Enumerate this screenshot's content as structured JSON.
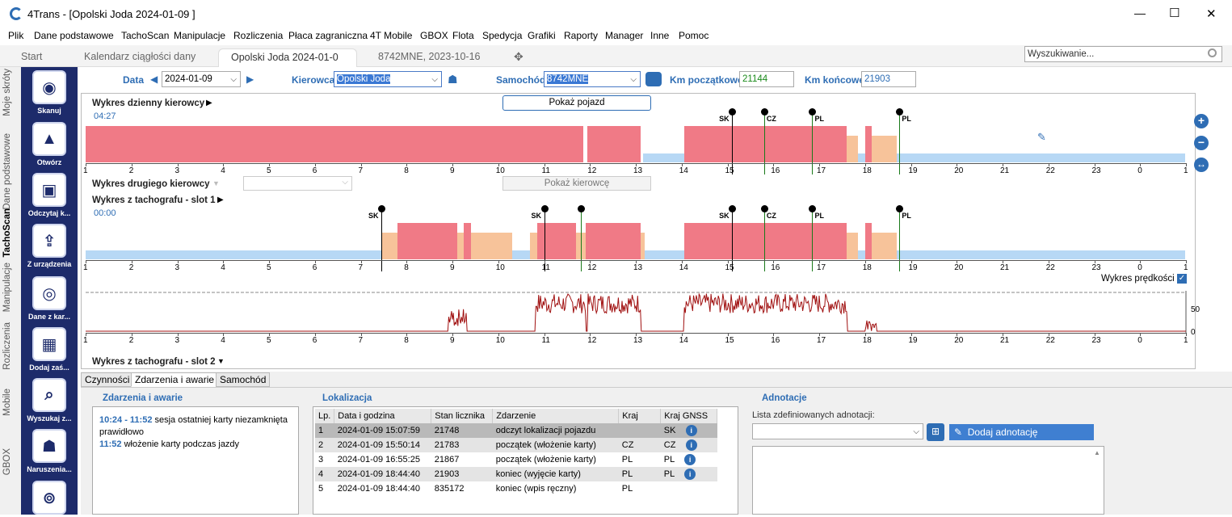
{
  "window": {
    "title": "4Trans - [Opolski Joda 2024-01-09 ]",
    "minimize": "—",
    "maximize": "☐",
    "close": "✕"
  },
  "menu": [
    "Plik",
    "Dane podstawowe",
    "TachoScan",
    "Manipulacje",
    "Rozliczenia",
    "Płaca zagraniczna",
    "4T Mobile",
    "GBOX",
    "Flota",
    "Spedycja",
    "Grafiki",
    "Raporty",
    "Manager",
    "Inne",
    "Pomoc"
  ],
  "tabs": [
    "Start",
    "Kalendarz ciągłości dany",
    "Opolski Joda 2024-01-0",
    "8742MNE, 2023-10-16"
  ],
  "search": {
    "placeholder": "Wyszukiwanie..."
  },
  "side_tabs": [
    "Moje skróty",
    "Dane podstawowe",
    "TachoScan",
    "Manipulacje",
    "Rozliczenia",
    "Mobile",
    "GBOX"
  ],
  "tools": [
    "Skanuj",
    "Otwórz",
    "Odczytaj k...",
    "Z urządzenia",
    "Dane z kar...",
    "Dodaj zaś...",
    "Wyszukaj z...",
    "Naruszenia..."
  ],
  "form": {
    "date_label": "Data",
    "date_value": "2024-01-09",
    "driver_label": "Kierowca",
    "driver_value": "Opolski Joda",
    "vehicle_label": "Samochód",
    "vehicle_value": "8742MNE",
    "km_start_label": "Km początkowe",
    "km_start_value": "21144",
    "km_end_label": "Km końcowe",
    "km_end_value": "21903"
  },
  "chart": {
    "daily_title": "Wykres dzienny kierowcy",
    "daily_time": "04:27",
    "show_vehicle": "Pokaż pojazd",
    "second_title": "Wykres drugiego kierowcy",
    "show_driver": "Pokaż kierowcę",
    "slot1_title": "Wykres z tachografu - slot 1",
    "slot1_time": "00:00",
    "speed_label": "Wykres prędkości",
    "speed_tick": "50",
    "speed_zero": "0",
    "slot2_title": "Wykres z tachografu - slot 2",
    "ticks": [
      "1",
      "2",
      "3",
      "4",
      "5",
      "6",
      "7",
      "8",
      "9",
      "10",
      "11",
      "12",
      "13",
      "14",
      "15",
      "16",
      "17",
      "18",
      "19",
      "20",
      "21",
      "22",
      "23",
      "0",
      "1"
    ],
    "daily_markers": [
      {
        "h": 15.1,
        "t": "SK"
      },
      {
        "h": 15.8,
        "t": "CZ"
      },
      {
        "h": 16.85,
        "t": "PL"
      },
      {
        "h": 18.75,
        "t": "PL"
      }
    ],
    "slot1_markers": [
      {
        "h": 7.45,
        "t": "SK"
      },
      {
        "h": 11.0,
        "t": "SK"
      },
      {
        "h": 11.8,
        "t": ""
      },
      {
        "h": 15.1,
        "t": "SK"
      },
      {
        "h": 15.8,
        "t": "CZ"
      },
      {
        "h": 16.85,
        "t": "PL"
      },
      {
        "h": 18.75,
        "t": "PL"
      }
    ]
  },
  "bottom": {
    "tabs": [
      "Czynności",
      "Zdarzenia i awarie",
      "Samochód"
    ],
    "events_title": "Zdarzenia i awarie",
    "events": [
      {
        "time": "10:24 - 11:52",
        "text": "sesja ostatniej karty niezamknięta prawidłowo"
      },
      {
        "time": "11:52",
        "text": "włożenie karty podczas jazdy"
      }
    ],
    "loc_title": "Lokalizacja",
    "loc_headers": [
      "Lp.",
      "Data i godzina",
      "Stan licznika",
      "Zdarzenie",
      "Kraj",
      "Kraj GNSS"
    ],
    "loc_rows": [
      {
        "lp": "1",
        "dt": "2024-01-09 15:07:59",
        "km": "21748",
        "ev": "odczyt lokalizacji pojazdu",
        "kraj": "",
        "gnss": "SK"
      },
      {
        "lp": "2",
        "dt": "2024-01-09 15:50:14",
        "km": "21783",
        "ev": "początek (włożenie karty)",
        "kraj": "CZ",
        "gnss": "CZ"
      },
      {
        "lp": "3",
        "dt": "2024-01-09 16:55:25",
        "km": "21867",
        "ev": "początek (włożenie karty)",
        "kraj": "PL",
        "gnss": "PL"
      },
      {
        "lp": "4",
        "dt": "2024-01-09 18:44:40",
        "km": "21903",
        "ev": "koniec (wyjęcie karty)",
        "kraj": "PL",
        "gnss": "PL"
      },
      {
        "lp": "5",
        "dt": "2024-01-09 18:44:40",
        "km": "835172",
        "ev": "koniec (wpis ręczny)",
        "kraj": "PL",
        "gnss": ""
      }
    ],
    "ann_title": "Adnotacje",
    "ann_list_label": "Lista zdefiniowanych adnotacji:",
    "ann_add": "Dodaj adnotację"
  }
}
